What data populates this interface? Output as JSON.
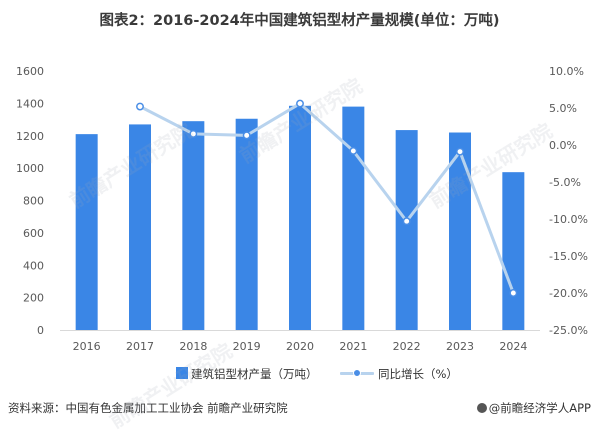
{
  "title": "图表2：2016-2024年中国建筑铝型材产量规模(单位：万吨)",
  "source": "资料来源：中国有色金属加工工业协会 前瞻产业研究院",
  "brand": "@前瞻经济学人APP",
  "watermark": "前瞻产业研究院",
  "colors": {
    "bar": "#3a86e6",
    "line": "#b8d3ee",
    "marker": "#4a8ee6",
    "axis_text": "#595959"
  },
  "chart_data": {
    "type": "bar",
    "categories": [
      "2016",
      "2017",
      "2018",
      "2019",
      "2020",
      "2021",
      "2022",
      "2023",
      "2024"
    ],
    "series": [
      {
        "name": "建筑铝型材产量（万吨）",
        "type": "bar",
        "axis": "left",
        "values": [
          1210,
          1270,
          1290,
          1305,
          1385,
          1380,
          1235,
          1220,
          975
        ]
      },
      {
        "name": "同比增长（%）",
        "type": "line",
        "axis": "right",
        "values": [
          null,
          5.2,
          1.5,
          1.3,
          5.6,
          -0.8,
          -10.3,
          -0.9,
          -20.0
        ]
      }
    ],
    "ylim_left": [
      0,
      1600
    ],
    "yticks_left": [
      0,
      200,
      400,
      600,
      800,
      1000,
      1200,
      1400,
      1600
    ],
    "ylim_right": [
      -25,
      10
    ],
    "yticks_right": [
      -25,
      -20,
      -15,
      -10,
      -5,
      0,
      5,
      10
    ],
    "ytick_labels_right": [
      "-25.0%",
      "-20.0%",
      "-15.0%",
      "-10.0%",
      "-5.0%",
      "0.0%",
      "5.0%",
      "10.0%"
    ],
    "grid": false,
    "legend_position": "bottom"
  }
}
